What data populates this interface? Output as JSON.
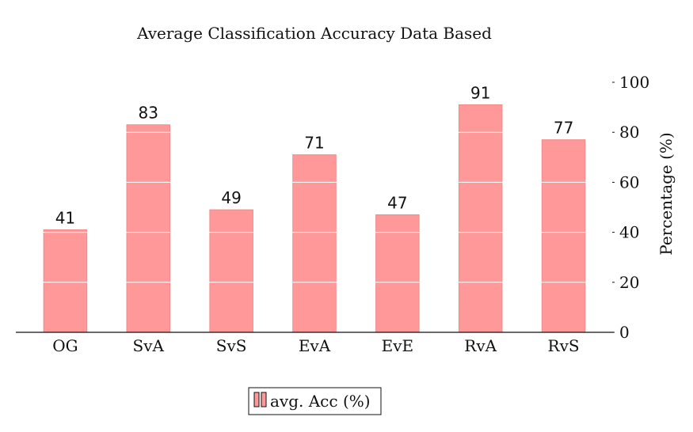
{
  "chart_data": {
    "type": "bar",
    "title": "Average Classification Accuracy Data Based",
    "categories": [
      "OG",
      "SvA",
      "SvS",
      "EvA",
      "EvE",
      "RvA",
      "RvS"
    ],
    "series": [
      {
        "name": "avg. Acc (%)",
        "values": [
          41,
          83,
          49,
          71,
          47,
          91,
          77
        ],
        "color": "#ff9999"
      }
    ],
    "data_labels": [
      "41",
      "83",
      "49",
      "71",
      "47",
      "91",
      "77"
    ],
    "ylabel": "Percentage (%)",
    "ylim": [
      0,
      100
    ],
    "yticks": [
      0,
      20,
      40,
      60,
      80,
      100
    ],
    "y_axis_position": "right",
    "grid": "horizontal white lines inside bars",
    "legend_position": "bottom-center"
  }
}
